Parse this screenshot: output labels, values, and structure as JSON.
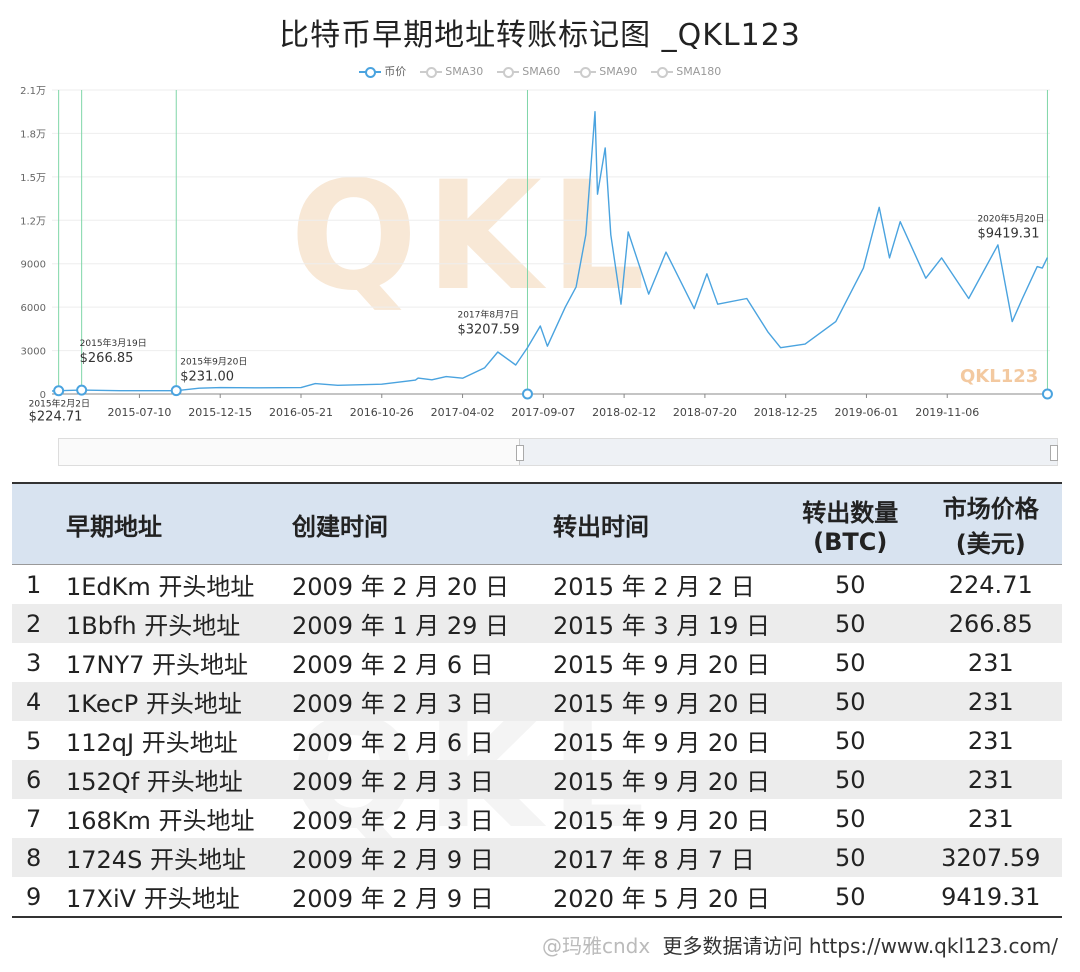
{
  "chart_data": {
    "type": "line",
    "title": "比特币早期地址转账标记图 _QKL123",
    "legend": [
      "币价",
      "SMA30",
      "SMA60",
      "SMA90",
      "SMA180"
    ],
    "legend_placement": "top-center",
    "y_ticks": [
      "0",
      "3000",
      "6000",
      "9000",
      "1.2万",
      "1.5万",
      "1.8万",
      "2.1万"
    ],
    "ylim": [
      0,
      21000
    ],
    "x_ticks": [
      "2015-07-10",
      "2015-12-15",
      "2016-05-21",
      "2016-10-26",
      "2017-04-02",
      "2017-09-07",
      "2018-02-12",
      "2018-07-20",
      "2018-12-25",
      "2019-06-01",
      "2019-11-06"
    ],
    "xlim": [
      "2015-01-20",
      "2020-05-25"
    ],
    "series": [
      {
        "name": "币价",
        "color": "#4aa3df",
        "points": [
          [
            "2015-01-20",
            210
          ],
          [
            "2015-02-02",
            225
          ],
          [
            "2015-03-19",
            267
          ],
          [
            "2015-06-01",
            225
          ],
          [
            "2015-09-20",
            231
          ],
          [
            "2015-11-04",
            400
          ],
          [
            "2015-12-15",
            440
          ],
          [
            "2016-03-01",
            430
          ],
          [
            "2016-05-21",
            440
          ],
          [
            "2016-06-18",
            720
          ],
          [
            "2016-08-01",
            600
          ],
          [
            "2016-10-26",
            680
          ],
          [
            "2016-12-31",
            960
          ],
          [
            "2017-01-05",
            1100
          ],
          [
            "2017-02-01",
            980
          ],
          [
            "2017-03-01",
            1200
          ],
          [
            "2017-04-02",
            1090
          ],
          [
            "2017-05-15",
            1800
          ],
          [
            "2017-06-10",
            2900
          ],
          [
            "2017-07-15",
            2000
          ],
          [
            "2017-08-07",
            3208
          ],
          [
            "2017-09-01",
            4700
          ],
          [
            "2017-09-15",
            3300
          ],
          [
            "2017-10-20",
            6000
          ],
          [
            "2017-11-10",
            7400
          ],
          [
            "2017-11-29",
            11000
          ],
          [
            "2017-12-17",
            19500
          ],
          [
            "2017-12-22",
            13800
          ],
          [
            "2018-01-06",
            17000
          ],
          [
            "2018-01-17",
            11000
          ],
          [
            "2018-02-06",
            6200
          ],
          [
            "2018-02-20",
            11200
          ],
          [
            "2018-04-01",
            6900
          ],
          [
            "2018-05-05",
            9800
          ],
          [
            "2018-06-29",
            5900
          ],
          [
            "2018-07-24",
            8300
          ],
          [
            "2018-08-14",
            6200
          ],
          [
            "2018-10-10",
            6600
          ],
          [
            "2018-11-20",
            4300
          ],
          [
            "2018-12-15",
            3200
          ],
          [
            "2019-02-01",
            3450
          ],
          [
            "2019-04-02",
            5000
          ],
          [
            "2019-05-26",
            8700
          ],
          [
            "2019-06-26",
            12900
          ],
          [
            "2019-07-16",
            9400
          ],
          [
            "2019-08-06",
            11900
          ],
          [
            "2019-09-25",
            8000
          ],
          [
            "2019-10-26",
            9400
          ],
          [
            "2019-12-18",
            6600
          ],
          [
            "2020-02-13",
            10300
          ],
          [
            "2020-03-12",
            5000
          ],
          [
            "2020-04-01",
            6600
          ],
          [
            "2020-04-30",
            8800
          ],
          [
            "2020-05-10",
            8700
          ],
          [
            "2020-05-20",
            9419
          ]
        ]
      }
    ],
    "annotations": [
      {
        "date": "2015-02-02",
        "value": 224.71,
        "date_label": "2015年2月2日",
        "value_label": "$224.71"
      },
      {
        "date": "2015-03-19",
        "value": 266.85,
        "date_label": "2015年3月19日",
        "value_label": "$266.85"
      },
      {
        "date": "2015-09-20",
        "value": 231.0,
        "date_label": "2015年9月20日",
        "value_label": "$231.00"
      },
      {
        "date": "2017-08-07",
        "value": 3207.59,
        "date_label": "2017年8月7日",
        "value_label": "$3207.59"
      },
      {
        "date": "2020-05-20",
        "value": 9419.31,
        "date_label": "2020年5月20日",
        "value_label": "$9419.31"
      }
    ],
    "grid": "horizontal",
    "watermark": "QKL123"
  },
  "table": {
    "headers": [
      " ",
      "早期地址",
      "创建时间",
      "转出时间",
      "转出数量",
      "(BTC)",
      "市场价格",
      "(美元)"
    ],
    "rows": [
      [
        "1",
        "1EdKm 开头地址",
        "2009 年 2 月 20 日",
        "2015 年 2 月 2 日",
        "50",
        "224.71"
      ],
      [
        "2",
        "1Bbfh 开头地址",
        "2009 年 1 月 29 日",
        "2015 年 3 月 19 日",
        "50",
        "266.85"
      ],
      [
        "3",
        "17NY7 开头地址",
        "2009 年 2 月 6 日",
        "2015 年 9 月 20 日",
        "50",
        "231"
      ],
      [
        "4",
        "1KecP 开头地址",
        "2009 年 2 月 3 日",
        "2015 年 9 月 20 日",
        "50",
        "231"
      ],
      [
        "5",
        "112qJ 开头地址",
        "2009 年 2 月 6 日",
        "2015 年 9 月 20 日",
        "50",
        "231"
      ],
      [
        "6",
        "152Qf 开头地址",
        "2009 年 2 月 3 日",
        "2015 年 9 月 20 日",
        "50",
        "231"
      ],
      [
        "7",
        "168Km 开头地址",
        "2009 年 2 月 3 日",
        "2015 年 9 月 20 日",
        "50",
        "231"
      ],
      [
        "8",
        "1724S 开头地址",
        "2009 年 2 月 9 日",
        "2017 年 8 月 7 日",
        "50",
        "3207.59"
      ],
      [
        "9",
        "17XiV 开头地址",
        "2009 年 2 月 9 日",
        "2020 年 5 月 20 日",
        "50",
        "9419.31"
      ]
    ]
  },
  "footer": {
    "weibo": "@玛雅cndx",
    "text": "更多数据请访问 https://www.qkl123.com/"
  }
}
